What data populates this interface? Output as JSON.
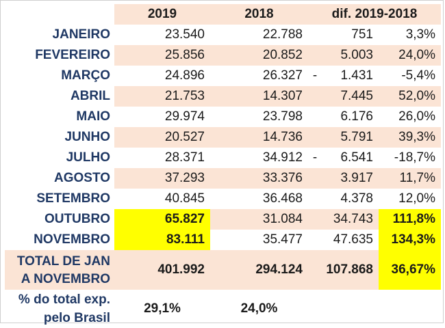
{
  "headers": [
    "2019",
    "2018",
    "dif. 2019-2018"
  ],
  "rows": [
    {
      "month": "JANEIRO",
      "v2019": "23.540",
      "v2018": "22.788",
      "sign": "",
      "diff": "751",
      "pct": "3,3%"
    },
    {
      "month": "FEVEREIRO",
      "v2019": "25.856",
      "v2018": "20.852",
      "sign": "",
      "diff": "5.003",
      "pct": "24,0%"
    },
    {
      "month": "MARÇO",
      "v2019": "24.896",
      "v2018": "26.327",
      "sign": "-",
      "diff": "1.431",
      "pct": "-5,4%"
    },
    {
      "month": "ABRIL",
      "v2019": "21.753",
      "v2018": "14.307",
      "sign": "",
      "diff": "7.445",
      "pct": "52,0%"
    },
    {
      "month": "MAIO",
      "v2019": "29.974",
      "v2018": "23.798",
      "sign": "",
      "diff": "6.176",
      "pct": "26,0%"
    },
    {
      "month": "JUNHO",
      "v2019": "20.527",
      "v2018": "14.736",
      "sign": "",
      "diff": "5.791",
      "pct": "39,3%"
    },
    {
      "month": "JULHO",
      "v2019": "28.371",
      "v2018": "34.912",
      "sign": "-",
      "diff": "6.541",
      "pct": "-18,7%"
    },
    {
      "month": "AGOSTO",
      "v2019": "37.293",
      "v2018": "33.376",
      "sign": "",
      "diff": "3.917",
      "pct": "11,7%"
    },
    {
      "month": "SETEMBRO",
      "v2019": "40.845",
      "v2018": "36.468",
      "sign": "",
      "diff": "4.378",
      "pct": "12,0%"
    },
    {
      "month": "OUTUBRO",
      "v2019": "65.827",
      "v2018": "31.084",
      "sign": "",
      "diff": "34.743",
      "pct": "111,8%"
    },
    {
      "month": "NOVEMBRO",
      "v2019": "83.111",
      "v2018": "35.477",
      "sign": "",
      "diff": "47.635",
      "pct": "134,3%"
    }
  ],
  "total": {
    "label": "TOTAL DE JAN A NOVEMBRO",
    "v2019": "401.992",
    "v2018": "294.124",
    "diff": "107.868",
    "pct": "36,67%"
  },
  "share": {
    "label": "% do total exp. pelo Brasil",
    "v2019": "29,1%",
    "v2018": "24,0%"
  },
  "colors": {
    "shade": "#fbe4d5",
    "highlight": "#ffff00"
  }
}
